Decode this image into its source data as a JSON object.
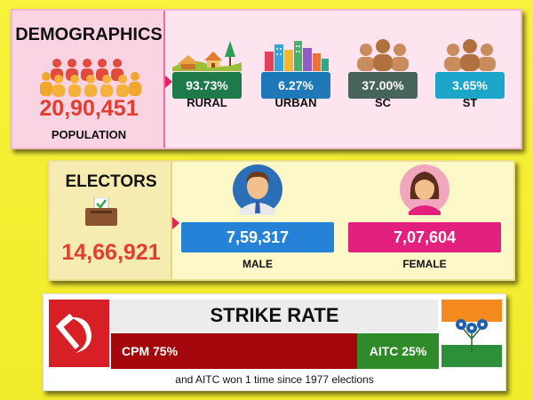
{
  "demographics": {
    "title": "DEMOGRAPHICS",
    "population_value": "20,90,451",
    "population_label": "POPULATION",
    "stats": [
      {
        "value": "93.73%",
        "label": "RURAL",
        "color": "#1e7a4b"
      },
      {
        "value": "6.27%",
        "label": "URBAN",
        "color": "#1f78b8"
      },
      {
        "value": "37.00%",
        "label": "SC",
        "color": "#46645c"
      },
      {
        "value": "3.65%",
        "label": "ST",
        "color": "#1ba6c9"
      }
    ]
  },
  "electors": {
    "title": "ELECTORS",
    "total": "14,66,921",
    "male": {
      "value": "7,59,317",
      "label": "MALE",
      "color": "#2582d6"
    },
    "female": {
      "value": "7,07,604",
      "label": "FEMALE",
      "color": "#e3207d"
    }
  },
  "strike_rate": {
    "title": "STRIKE RATE",
    "cpm": "CPM 75%",
    "aitc": "AITC 25%",
    "note": "and AITC won 1 time since 1977 elections",
    "cpm_share": 75,
    "aitc_share": 25
  }
}
